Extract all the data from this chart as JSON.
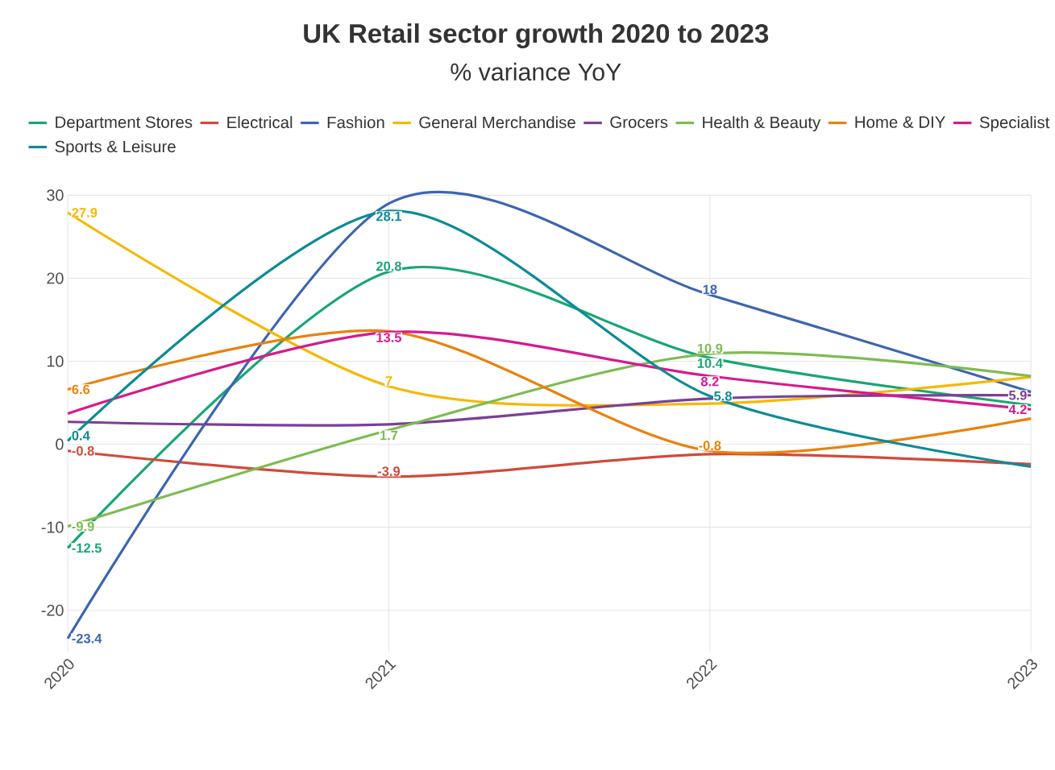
{
  "chart_data": {
    "type": "line",
    "title": "UK Retail sector growth 2020 to 2023",
    "subtitle": "% variance YoY",
    "x": [
      2020,
      2021,
      2022,
      2023
    ],
    "xlim": [
      2020,
      2023
    ],
    "xticks": [
      2020,
      2021,
      2022,
      2023
    ],
    "ylim": [
      -25,
      30
    ],
    "yticks": [
      -20,
      -10,
      0,
      10,
      20,
      30
    ],
    "grid": true,
    "legend": "top",
    "marker": "none",
    "line_style": "solid",
    "series": [
      {
        "name": "Department Stores",
        "color": "#17a673",
        "values": [
          -12.5,
          20.8,
          10.4,
          4.7
        ],
        "value_labels": [
          "-12.5",
          "20.8",
          "10.4",
          null
        ]
      },
      {
        "name": "Electrical",
        "color": "#d04a3a",
        "values": [
          -0.8,
          -3.9,
          -1.2,
          -2.4
        ],
        "value_labels": [
          "-0.8",
          "-3.9",
          null,
          null
        ]
      },
      {
        "name": "Fashion",
        "color": "#3d65b0",
        "values": [
          -23.4,
          29.0,
          18,
          6.3
        ],
        "value_labels": [
          "-23.4",
          null,
          "18",
          null
        ]
      },
      {
        "name": "General Merchandise",
        "color": "#f5b800",
        "values": [
          27.9,
          7,
          4.9,
          8.1
        ],
        "value_labels": [
          "27.9",
          "7",
          null,
          null
        ]
      },
      {
        "name": "Grocers",
        "color": "#7b3f98",
        "values": [
          2.7,
          2.4,
          5.5,
          5.9
        ],
        "value_labels": [
          null,
          null,
          null,
          "5.9"
        ]
      },
      {
        "name": "Health & Beauty",
        "color": "#7dbb52",
        "values": [
          -9.9,
          1.7,
          10.9,
          8.2
        ],
        "value_labels": [
          "-9.9",
          "1.7",
          "10.9",
          null
        ]
      },
      {
        "name": "Home & DIY",
        "color": "#e8820c",
        "values": [
          6.6,
          13.6,
          -0.8,
          3.1
        ],
        "value_labels": [
          "6.6",
          null,
          "-0.8",
          null
        ]
      },
      {
        "name": "Specialist",
        "color": "#d6198f",
        "values": [
          3.7,
          13.5,
          8.2,
          4.2
        ],
        "value_labels": [
          null,
          "13.5",
          "8.2",
          "4.2"
        ]
      },
      {
        "name": "Sports & Leisure",
        "color": "#0c8b96",
        "values": [
          0.4,
          28.1,
          5.8,
          -2.7
        ],
        "value_labels": [
          "0.4",
          "28.1",
          "5.8",
          null
        ]
      }
    ]
  }
}
